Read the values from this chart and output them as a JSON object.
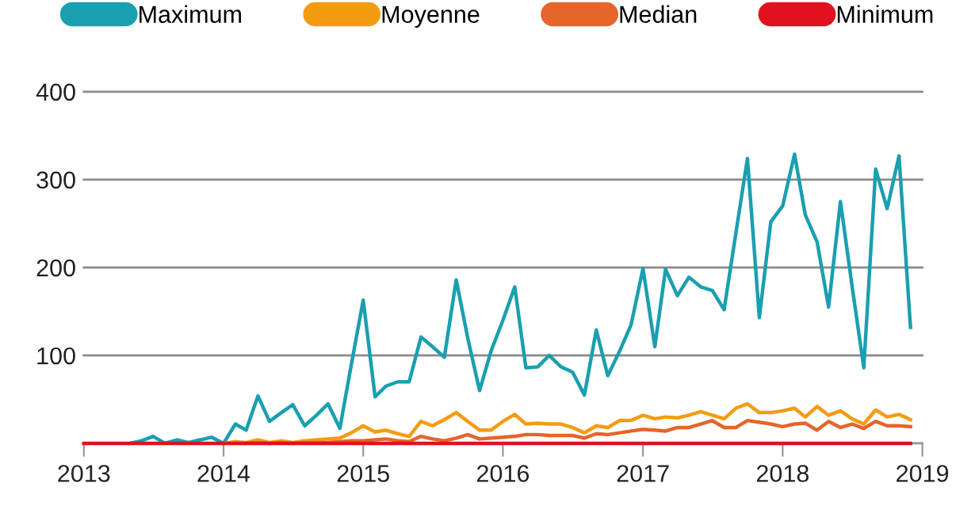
{
  "chart_data": {
    "type": "line",
    "x": [
      "2013-01",
      "2013-02",
      "2013-03",
      "2013-04",
      "2013-05",
      "2013-06",
      "2013-07",
      "2013-08",
      "2013-09",
      "2013-10",
      "2013-11",
      "2013-12",
      "2014-01",
      "2014-02",
      "2014-03",
      "2014-04",
      "2014-05",
      "2014-06",
      "2014-07",
      "2014-08",
      "2014-09",
      "2014-10",
      "2014-11",
      "2014-12",
      "2015-01",
      "2015-02",
      "2015-03",
      "2015-04",
      "2015-05",
      "2015-06",
      "2015-07",
      "2015-08",
      "2015-09",
      "2015-10",
      "2015-11",
      "2015-12",
      "2016-01",
      "2016-02",
      "2016-03",
      "2016-04",
      "2016-05",
      "2016-06",
      "2016-07",
      "2016-08",
      "2016-09",
      "2016-10",
      "2016-11",
      "2016-12",
      "2017-01",
      "2017-02",
      "2017-03",
      "2017-04",
      "2017-05",
      "2017-06",
      "2017-07",
      "2017-08",
      "2017-09",
      "2017-10",
      "2017-11",
      "2017-12",
      "2018-01",
      "2018-02",
      "2018-03",
      "2018-04",
      "2018-05",
      "2018-06",
      "2018-07",
      "2018-08",
      "2018-09",
      "2018-10",
      "2018-11",
      "2018-12"
    ],
    "series": [
      {
        "name": "Maximum",
        "color": "#1a9fb0",
        "values": [
          null,
          null,
          null,
          null,
          0,
          3,
          8,
          0,
          4,
          1,
          4,
          7,
          0,
          22,
          15,
          54,
          25,
          35,
          44,
          20,
          32,
          45,
          17,
          90,
          163,
          53,
          65,
          70,
          70,
          121,
          110,
          98,
          186,
          120,
          60,
          105,
          140,
          178,
          86,
          87,
          100,
          87,
          81,
          55,
          129,
          77,
          105,
          135,
          199,
          110,
          198,
          168,
          189,
          178,
          174,
          152,
          240,
          324,
          143,
          252,
          270,
          329,
          260,
          229,
          155,
          275,
          180,
          86,
          312,
          267,
          327,
          132
        ]
      },
      {
        "name": "Moyenne",
        "color": "#f39c12",
        "values": [
          null,
          null,
          null,
          null,
          null,
          null,
          null,
          null,
          null,
          null,
          null,
          null,
          0,
          2,
          1,
          4,
          1,
          3,
          1,
          3,
          4,
          5,
          6,
          12,
          20,
          13,
          15,
          11,
          8,
          25,
          20,
          27,
          35,
          25,
          15,
          15,
          25,
          33,
          22,
          23,
          22,
          22,
          18,
          12,
          20,
          18,
          26,
          26,
          32,
          28,
          30,
          29,
          32,
          36,
          32,
          28,
          40,
          45,
          35,
          35,
          37,
          40,
          30,
          42,
          32,
          37,
          28,
          22,
          38,
          30,
          33,
          27
        ]
      },
      {
        "name": "Median",
        "color": "#e5652a",
        "values": [
          null,
          null,
          null,
          null,
          null,
          null,
          null,
          null,
          null,
          null,
          null,
          null,
          null,
          null,
          0,
          1,
          0,
          1,
          0,
          1,
          1,
          1,
          2,
          3,
          3,
          4,
          5,
          3,
          2,
          8,
          5,
          3,
          6,
          10,
          5,
          6,
          7,
          8,
          10,
          10,
          9,
          9,
          9,
          6,
          11,
          10,
          12,
          14,
          16,
          15,
          14,
          18,
          18,
          22,
          26,
          18,
          18,
          26,
          24,
          22,
          19,
          22,
          23,
          15,
          25,
          18,
          22,
          17,
          25,
          20,
          20,
          19
        ]
      },
      {
        "name": "Minimum",
        "color": "#e0121f",
        "values": [
          0,
          0,
          0,
          0,
          0,
          0,
          0,
          0,
          0,
          0,
          0,
          0,
          0,
          0,
          0,
          0,
          0,
          0,
          0,
          0,
          0,
          0,
          0,
          0,
          0,
          0,
          0,
          0,
          0,
          0,
          0,
          0,
          0,
          0,
          0,
          0,
          0,
          0,
          0,
          0,
          0,
          0,
          0,
          0,
          0,
          0,
          0,
          0,
          0,
          0,
          0,
          0,
          0,
          0,
          0,
          0,
          0,
          0,
          0,
          0,
          0,
          0,
          0,
          0,
          0,
          0,
          0,
          0,
          0,
          0,
          0,
          0
        ]
      }
    ],
    "xlim": [
      "2013-01",
      "2019-01"
    ],
    "xticks": [
      {
        "value": "2013-01",
        "label": "2013"
      },
      {
        "value": "2014-01",
        "label": "2014"
      },
      {
        "value": "2015-01",
        "label": "2015"
      },
      {
        "value": "2016-01",
        "label": "2016"
      },
      {
        "value": "2017-01",
        "label": "2017"
      },
      {
        "value": "2018-01",
        "label": "2018"
      },
      {
        "value": "2019-01",
        "label": "2019"
      }
    ],
    "ylim": [
      0,
      400
    ],
    "yticks": [
      {
        "value": 0,
        "label": null
      },
      100,
      200,
      300,
      400
    ],
    "grid": "y",
    "legend": "top",
    "marker": "none",
    "line_style": "solid"
  }
}
